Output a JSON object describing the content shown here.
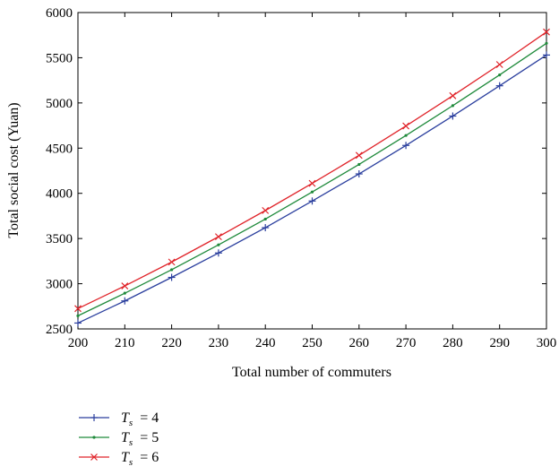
{
  "chart_data": {
    "type": "line",
    "title": "",
    "xlabel": "Total number of commuters",
    "ylabel": "Total social cost (Yuan)",
    "xlim": [
      200,
      300
    ],
    "ylim": [
      2500,
      6000
    ],
    "x": [
      200,
      210,
      220,
      230,
      240,
      250,
      260,
      270,
      280,
      290,
      300
    ],
    "xticks": [
      200,
      210,
      220,
      230,
      240,
      250,
      260,
      270,
      280,
      290,
      300
    ],
    "yticks": [
      2500,
      3000,
      3500,
      4000,
      4500,
      5000,
      5500,
      6000
    ],
    "grid": false,
    "legend_position": "below",
    "series": [
      {
        "name": "Ts = 4",
        "legend_var": "T",
        "legend_sub": "s",
        "legend_value": "= 4",
        "color": "#2b3f9e",
        "marker": "plus",
        "values": [
          2565,
          2810,
          3070,
          3340,
          3620,
          3915,
          4215,
          4530,
          4855,
          5190,
          5530
        ]
      },
      {
        "name": "Ts = 5",
        "legend_var": "T",
        "legend_sub": "s",
        "legend_value": "= 5",
        "color": "#1f8a3b",
        "marker": "dot",
        "values": [
          2645,
          2895,
          3155,
          3430,
          3715,
          4015,
          4320,
          4640,
          4970,
          5310,
          5660
        ]
      },
      {
        "name": "Ts = 6",
        "legend_var": "T",
        "legend_sub": "s",
        "legend_value": "= 6",
        "color": "#e0242a",
        "marker": "x",
        "values": [
          2725,
          2975,
          3240,
          3520,
          3810,
          4110,
          4420,
          4745,
          5080,
          5425,
          5785
        ]
      }
    ]
  }
}
